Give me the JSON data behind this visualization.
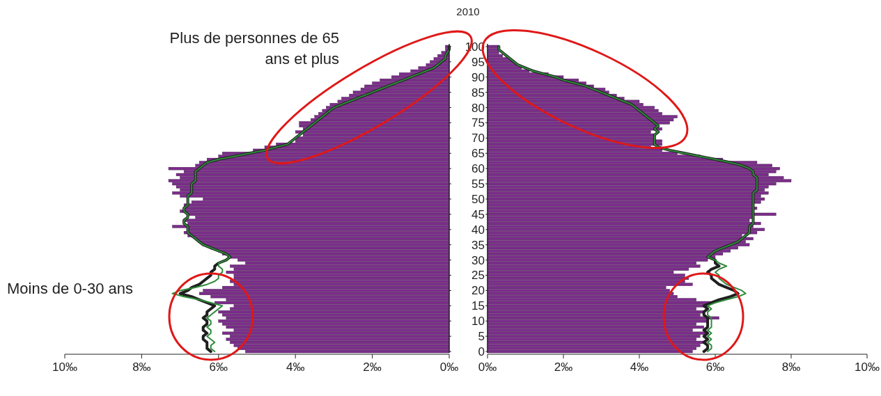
{
  "chart_data": [
    {
      "type": "bar",
      "orientation": "horizontal",
      "title": "2010",
      "tick_labels": "x",
      "annotations": [
        "Plus de personnes de 65 ans et plus",
        "Moins de 0-30 ans"
      ],
      "categories": [
        "100",
        null,
        null,
        null,
        null,
        "95",
        null,
        null,
        null,
        null,
        "90",
        null,
        null,
        null,
        null,
        "85",
        null,
        null,
        null,
        null,
        "80",
        null,
        null,
        null,
        null,
        "75",
        null,
        null,
        null,
        null,
        "70",
        null,
        null,
        null,
        null,
        "65",
        null,
        null,
        null,
        null,
        "60",
        null,
        null,
        null,
        null,
        "55",
        null,
        null,
        null,
        null,
        "50",
        null,
        null,
        null,
        null,
        "45",
        null,
        null,
        null,
        null,
        "40",
        null,
        null,
        null,
        null,
        "35",
        null,
        null,
        null,
        null,
        "30",
        null,
        null,
        null,
        null,
        "25",
        null,
        null,
        null,
        null,
        "20",
        null,
        null,
        null,
        null,
        "15",
        null,
        null,
        null,
        null,
        "10",
        null,
        null,
        null,
        null,
        "5",
        null,
        null,
        null,
        null,
        "0"
      ],
      "xlim": [
        10,
        0
      ],
      "xticks": [
        {
          "value": 10,
          "label": "10‰"
        },
        {
          "value": 8,
          "label": "8‰"
        },
        {
          "value": 6,
          "label": "6‰"
        },
        {
          "value": 4,
          "label": "4‰"
        },
        {
          "value": 2,
          "label": "2‰"
        },
        {
          "value": 0,
          "label": "0‰"
        }
      ],
      "series": [
        {
          "color": "#7b2d8b",
          "values": [
            0.1,
            0.1,
            0.2,
            0.3,
            0.4,
            0.5,
            0.6,
            0.8,
            1.0,
            1.3,
            1.5,
            1.8,
            2.0,
            2.2,
            2.3,
            2.5,
            2.6,
            2.8,
            2.9,
            3.1,
            3.2,
            3.3,
            3.4,
            3.5,
            3.6,
            3.9,
            3.9,
            3.8,
            4.0,
            3.8,
            4.0,
            4.0,
            4.5,
            4.8,
            5.1,
            5.9,
            6.0,
            6.3,
            6.5,
            6.6,
            7.3,
            6.9,
            7.1,
            7.0,
            7.3,
            7.2,
            7.1,
            7.0,
            7.2,
            7.0,
            6.4,
            6.7,
            6.9,
            6.9,
            7.0,
            6.8,
            6.6,
            6.9,
            6.8,
            7.2,
            6.8,
            6.9,
            6.8,
            6.6,
            6.5,
            6.4,
            6.2,
            6.0,
            5.9,
            5.7,
            5.5,
            5.3,
            5.7,
            5.6,
            5.8,
            5.6,
            5.6,
            5.7,
            5.6,
            5.9,
            6.4,
            6.5,
            6.2,
            5.8,
            6.1,
            5.6,
            5.7,
            6.0,
            5.9,
            5.8,
            6.0,
            5.9,
            5.8,
            5.6,
            5.9,
            5.7,
            5.8,
            5.7,
            5.6,
            5.5,
            5.3
          ]
        },
        {
          "type": "line",
          "color": "#1f1f1f",
          "values": [
            0,
            0,
            0.05,
            0.1,
            0.1,
            0.2,
            0.3,
            0.4,
            0.6,
            0.8,
            1.0,
            1.2,
            1.4,
            1.6,
            1.8,
            2.0,
            2.2,
            2.4,
            2.6,
            2.8,
            3.0,
            3.1,
            3.2,
            3.3,
            3.4,
            3.5,
            3.6,
            3.7,
            3.8,
            3.9,
            4.0,
            4.1,
            4.2,
            4.5,
            4.8,
            5.2,
            5.6,
            6.0,
            6.3,
            6.4,
            6.5,
            6.6,
            6.6,
            6.6,
            6.6,
            6.7,
            6.7,
            6.7,
            6.7,
            6.8,
            6.8,
            6.8,
            6.8,
            6.9,
            6.9,
            6.8,
            6.8,
            6.9,
            6.9,
            6.8,
            6.8,
            6.8,
            6.7,
            6.6,
            6.5,
            6.4,
            6.2,
            6.0,
            5.8,
            5.7,
            5.8,
            6.0,
            6.1,
            6.1,
            6.2,
            6.2,
            6.3,
            6.4,
            6.5,
            6.7,
            6.8,
            7.0,
            6.7,
            6.5,
            6.3,
            6.1,
            6.2,
            6.3,
            6.3,
            6.4,
            6.3,
            6.3,
            6.4,
            6.4,
            6.3,
            6.4,
            6.4,
            6.3,
            6.3,
            6.3,
            6.2
          ]
        },
        {
          "type": "line",
          "color": "#2e8b3a",
          "values": [
            0,
            0,
            0.05,
            0.1,
            0.1,
            0.2,
            0.3,
            0.4,
            0.6,
            0.8,
            1.0,
            1.2,
            1.4,
            1.6,
            1.8,
            2.0,
            2.2,
            2.4,
            2.6,
            2.8,
            3.0,
            3.1,
            3.2,
            3.3,
            3.4,
            3.5,
            3.6,
            3.7,
            3.8,
            3.9,
            4.0,
            4.1,
            4.2,
            4.5,
            4.8,
            5.2,
            5.6,
            6.0,
            6.3,
            6.4,
            6.5,
            6.6,
            6.6,
            6.6,
            6.6,
            6.7,
            6.7,
            6.7,
            6.7,
            6.8,
            6.8,
            6.8,
            6.8,
            6.9,
            6.9,
            6.8,
            6.8,
            6.9,
            6.9,
            6.8,
            6.8,
            6.8,
            6.7,
            6.6,
            6.5,
            6.4,
            6.2,
            6.0,
            5.8,
            5.7,
            5.8,
            6.0,
            6.0,
            5.9,
            5.9,
            6.0,
            6.0,
            6.1,
            6.3,
            6.6,
            7.0,
            7.2,
            6.9,
            6.5,
            6.2,
            5.9,
            6.0,
            6.1,
            6.2,
            6.3,
            6.2,
            6.2,
            6.3,
            6.2,
            6.2,
            6.3,
            6.2,
            6.1,
            6.2,
            6.2,
            6.1
          ]
        }
      ]
    },
    {
      "type": "bar",
      "orientation": "horizontal",
      "categories": [
        "100",
        null,
        null,
        null,
        null,
        "95",
        null,
        null,
        null,
        null,
        "90",
        null,
        null,
        null,
        null,
        "85",
        null,
        null,
        null,
        null,
        "80",
        null,
        null,
        null,
        null,
        "75",
        null,
        null,
        null,
        null,
        "70",
        null,
        null,
        null,
        null,
        "65",
        null,
        null,
        null,
        null,
        "60",
        null,
        null,
        null,
        null,
        "55",
        null,
        null,
        null,
        null,
        "50",
        null,
        null,
        null,
        null,
        "45",
        null,
        null,
        null,
        null,
        "40",
        null,
        null,
        null,
        null,
        "35",
        null,
        null,
        null,
        null,
        "30",
        null,
        null,
        null,
        null,
        "25",
        null,
        null,
        null,
        null,
        "20",
        null,
        null,
        null,
        null,
        "15",
        null,
        null,
        null,
        null,
        "10",
        null,
        null,
        null,
        null,
        "5",
        null,
        null,
        null,
        null,
        "0"
      ],
      "xlim": [
        0,
        10
      ],
      "xticks": [
        {
          "value": 0,
          "label": "0‰"
        },
        {
          "value": 2,
          "label": "2‰"
        },
        {
          "value": 4,
          "label": "4‰"
        },
        {
          "value": 6,
          "label": "6‰"
        },
        {
          "value": 8,
          "label": "8‰"
        },
        {
          "value": 10,
          "label": "10‰"
        }
      ],
      "series": [
        {
          "color": "#7b2d8b",
          "values": [
            0.3,
            0.3,
            0.3,
            0.4,
            0.6,
            0.7,
            0.8,
            0.9,
            1.1,
            1.6,
            2.0,
            2.4,
            2.6,
            2.8,
            3.1,
            3.2,
            3.4,
            3.6,
            4.0,
            4.1,
            4.4,
            4.5,
            4.6,
            5.0,
            4.9,
            4.8,
            4.5,
            4.6,
            4.3,
            4.4,
            4.4,
            4.6,
            4.6,
            4.3,
            4.6,
            5.0,
            5.6,
            6.2,
            7.1,
            7.5,
            7.7,
            7.6,
            7.4,
            7.8,
            8.0,
            7.6,
            7.4,
            7.3,
            7.4,
            7.2,
            7.3,
            7.2,
            7.0,
            7.1,
            7.0,
            7.6,
            7.0,
            6.9,
            7.2,
            7.0,
            7.3,
            7.1,
            6.7,
            7.0,
            6.8,
            6.9,
            6.6,
            6.4,
            6.2,
            6.0,
            5.8,
            5.5,
            5.6,
            5.3,
            4.9,
            5.2,
            5.3,
            5.2,
            5.4,
            4.7,
            4.8,
            4.9,
            5.0,
            5.5,
            5.9,
            5.8,
            5.5,
            5.7,
            5.6,
            6.1,
            5.8,
            5.5,
            5.7,
            5.4,
            5.8,
            5.6,
            5.5,
            5.7,
            5.6,
            5.5,
            5.4
          ]
        },
        {
          "type": "line",
          "color": "#1f1f1f",
          "values": [
            0.3,
            0.3,
            0.4,
            0.5,
            0.6,
            0.7,
            0.8,
            1.0,
            1.2,
            1.5,
            1.8,
            2.0,
            2.3,
            2.6,
            2.8,
            3.0,
            3.2,
            3.4,
            3.6,
            3.8,
            3.9,
            4.0,
            4.1,
            4.2,
            4.3,
            4.4,
            4.5,
            4.4,
            4.5,
            4.4,
            4.4,
            4.4,
            4.4,
            4.5,
            4.8,
            5.2,
            5.6,
            6.0,
            6.4,
            6.7,
            6.9,
            7.0,
            7.0,
            7.1,
            7.1,
            7.1,
            7.1,
            7.1,
            7.0,
            7.0,
            7.0,
            7.0,
            7.0,
            7.0,
            7.0,
            7.0,
            7.0,
            7.0,
            7.0,
            6.9,
            6.9,
            6.9,
            6.8,
            6.7,
            6.6,
            6.4,
            6.2,
            6.0,
            5.9,
            5.8,
            6.0,
            6.0,
            6.1,
            5.9,
            5.8,
            5.9,
            5.9,
            6.0,
            6.1,
            6.3,
            6.5,
            6.6,
            6.4,
            6.1,
            5.9,
            5.7,
            5.8,
            5.7,
            5.7,
            5.8,
            5.8,
            5.8,
            5.8,
            5.7,
            5.8,
            5.7,
            5.8,
            5.7,
            5.8,
            5.8,
            5.7
          ]
        },
        {
          "type": "line",
          "color": "#2e8b3a",
          "values": [
            0.3,
            0.3,
            0.4,
            0.5,
            0.6,
            0.7,
            0.8,
            1.0,
            1.2,
            1.5,
            1.8,
            2.0,
            2.3,
            2.6,
            2.8,
            3.0,
            3.2,
            3.4,
            3.6,
            3.8,
            3.9,
            4.0,
            4.1,
            4.2,
            4.3,
            4.4,
            4.5,
            4.4,
            4.5,
            4.4,
            4.4,
            4.4,
            4.4,
            4.5,
            4.8,
            5.2,
            5.6,
            6.0,
            6.4,
            6.7,
            6.9,
            7.0,
            7.0,
            7.1,
            7.1,
            7.1,
            7.1,
            7.1,
            7.0,
            7.0,
            7.0,
            7.0,
            7.0,
            7.0,
            7.0,
            7.0,
            7.0,
            7.0,
            7.0,
            6.9,
            6.9,
            6.9,
            6.8,
            6.7,
            6.6,
            6.4,
            6.2,
            6.0,
            5.9,
            5.8,
            6.0,
            6.1,
            6.3,
            6.1,
            6.0,
            6.1,
            6.1,
            6.2,
            6.3,
            6.5,
            6.7,
            6.8,
            6.6,
            6.3,
            6.0,
            5.8,
            5.9,
            5.8,
            5.8,
            5.9,
            5.9,
            5.9,
            5.9,
            5.8,
            5.9,
            5.8,
            5.9,
            5.8,
            5.9,
            5.9,
            5.8
          ]
        }
      ]
    }
  ]
}
